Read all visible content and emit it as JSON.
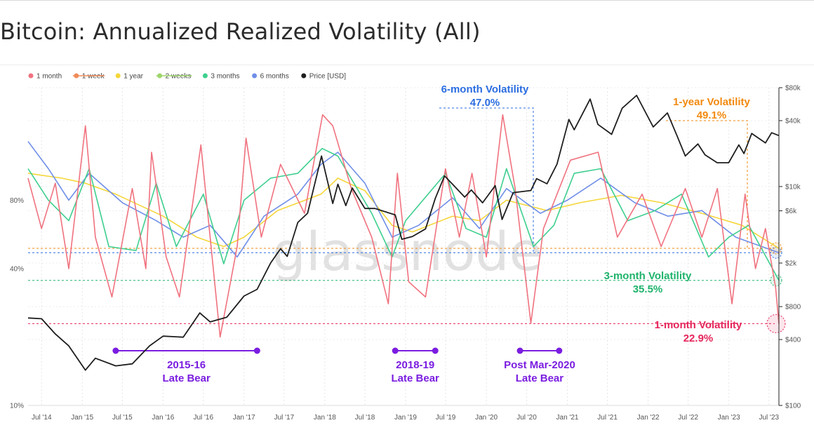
{
  "page": {
    "title": "Bitcoin: Annualized Realized Volatility (All)",
    "watermark": "glassnode"
  },
  "chart_data": {
    "type": "line",
    "x_range": [
      "2014-05-01",
      "2023-08-15"
    ],
    "x_ticks": [
      "Jul '14",
      "Jan '15",
      "Jul '15",
      "Jan '16",
      "Jul '16",
      "Jan '17",
      "Jul '17",
      "Jan '18",
      "Jul '18",
      "Jan '19",
      "Jul '19",
      "Jan '20",
      "Jul '20",
      "Jan '21",
      "Jul '21",
      "Jan '22",
      "Jul '22",
      "Jan '23",
      "Jul '23"
    ],
    "y_left": {
      "scale": "log",
      "unit": "volatility",
      "ticks": [
        "10%",
        "40%",
        "80%"
      ],
      "values": [
        0.1,
        0.4,
        0.8
      ],
      "range": [
        0.1,
        2.5
      ]
    },
    "y_right": {
      "scale": "log",
      "unit": "Price [USD]",
      "ticks": [
        "$100",
        "$400",
        "$800",
        "$2k",
        "$6k",
        "$10k",
        "$40k",
        "$80k"
      ],
      "values": [
        100,
        400,
        800,
        2000,
        6000,
        10000,
        40000,
        80000
      ],
      "range": [
        100,
        80000
      ]
    },
    "legend": [
      {
        "name": "1 month",
        "color": "#f0727f",
        "hidden": false
      },
      {
        "name": "1 week",
        "color": "#f08c5a",
        "hidden": true
      },
      {
        "name": "1 year",
        "color": "#f5d63a",
        "hidden": false
      },
      {
        "name": "2 weeks",
        "color": "#9ed66b",
        "hidden": true
      },
      {
        "name": "3 months",
        "color": "#3ecf8e",
        "hidden": false
      },
      {
        "name": "6 months",
        "color": "#6f8ee8",
        "hidden": false
      },
      {
        "name": "Price [USD]",
        "color": "#1e1e1e",
        "hidden": false
      }
    ],
    "series": [
      {
        "name": "Price [USD]",
        "axis": "right",
        "color": "#1e1e1e",
        "points": [
          [
            "2014-05-01",
            630
          ],
          [
            "2014-07-01",
            620
          ],
          [
            "2014-09-01",
            450
          ],
          [
            "2014-11-01",
            350
          ],
          [
            "2015-01-15",
            210
          ],
          [
            "2015-03-01",
            270
          ],
          [
            "2015-06-01",
            230
          ],
          [
            "2015-08-15",
            240
          ],
          [
            "2015-11-01",
            350
          ],
          [
            "2016-01-01",
            430
          ],
          [
            "2016-04-01",
            420
          ],
          [
            "2016-06-15",
            700
          ],
          [
            "2016-08-01",
            580
          ],
          [
            "2016-10-15",
            640
          ],
          [
            "2017-01-01",
            1000
          ],
          [
            "2017-03-01",
            1150
          ],
          [
            "2017-05-01",
            2000
          ],
          [
            "2017-06-15",
            2700
          ],
          [
            "2017-07-15",
            2300
          ],
          [
            "2017-09-01",
            4700
          ],
          [
            "2017-10-15",
            5700
          ],
          [
            "2017-12-17",
            19000
          ],
          [
            "2018-02-06",
            7000
          ],
          [
            "2018-03-01",
            10500
          ],
          [
            "2018-04-06",
            6700
          ],
          [
            "2018-05-05",
            9700
          ],
          [
            "2018-07-01",
            6300
          ],
          [
            "2018-08-15",
            6300
          ],
          [
            "2018-11-15",
            5500
          ],
          [
            "2018-12-15",
            3300
          ],
          [
            "2019-02-01",
            3500
          ],
          [
            "2019-04-01",
            4100
          ],
          [
            "2019-05-15",
            7800
          ],
          [
            "2019-06-26",
            12500
          ],
          [
            "2019-08-01",
            10500
          ],
          [
            "2019-09-25",
            8000
          ],
          [
            "2019-10-25",
            9300
          ],
          [
            "2019-12-15",
            7100
          ],
          [
            "2020-02-10",
            10200
          ],
          [
            "2020-03-12",
            5000
          ],
          [
            "2020-05-01",
            8800
          ],
          [
            "2020-07-20",
            9200
          ],
          [
            "2020-08-15",
            11800
          ],
          [
            "2020-10-01",
            10600
          ],
          [
            "2020-11-15",
            16000
          ],
          [
            "2021-01-08",
            41000
          ],
          [
            "2021-02-01",
            33000
          ],
          [
            "2021-04-14",
            63000
          ],
          [
            "2021-05-19",
            37000
          ],
          [
            "2021-07-20",
            30000
          ],
          [
            "2021-09-06",
            52000
          ],
          [
            "2021-11-10",
            68000
          ],
          [
            "2022-01-24",
            35000
          ],
          [
            "2022-03-29",
            47000
          ],
          [
            "2022-05-12",
            29000
          ],
          [
            "2022-06-18",
            19000
          ],
          [
            "2022-08-14",
            24500
          ],
          [
            "2022-09-15",
            19500
          ],
          [
            "2022-11-09",
            16500
          ],
          [
            "2022-12-31",
            16500
          ],
          [
            "2023-02-15",
            24000
          ],
          [
            "2023-03-10",
            20000
          ],
          [
            "2023-04-14",
            30500
          ],
          [
            "2023-06-15",
            25000
          ],
          [
            "2023-07-13",
            31000
          ],
          [
            "2023-08-15",
            29200
          ]
        ]
      },
      {
        "name": "1 year",
        "axis": "left",
        "color": "#f5d63a",
        "points": [
          [
            "2014-05-01",
            1.05
          ],
          [
            "2014-10-01",
            1.0
          ],
          [
            "2015-01-15",
            0.95
          ],
          [
            "2015-06-01",
            0.85
          ],
          [
            "2016-01-01",
            0.68
          ],
          [
            "2016-06-01",
            0.55
          ],
          [
            "2016-10-01",
            0.5
          ],
          [
            "2017-01-01",
            0.55
          ],
          [
            "2017-06-01",
            0.72
          ],
          [
            "2017-12-15",
            0.85
          ],
          [
            "2018-03-01",
            1.0
          ],
          [
            "2018-07-01",
            0.88
          ],
          [
            "2018-11-01",
            0.62
          ],
          [
            "2019-02-01",
            0.58
          ],
          [
            "2019-08-01",
            0.68
          ],
          [
            "2019-12-01",
            0.65
          ],
          [
            "2020-04-01",
            0.8
          ],
          [
            "2020-10-01",
            0.72
          ],
          [
            "2021-03-01",
            0.78
          ],
          [
            "2021-09-01",
            0.84
          ],
          [
            "2022-03-01",
            0.78
          ],
          [
            "2022-09-01",
            0.7
          ],
          [
            "2023-03-01",
            0.62
          ],
          [
            "2023-08-15",
            0.491
          ]
        ]
      },
      {
        "name": "6 months",
        "axis": "left",
        "color": "#6f8ee8",
        "points": [
          [
            "2014-05-01",
            1.45
          ],
          [
            "2014-08-01",
            1.1
          ],
          [
            "2014-11-01",
            0.8
          ],
          [
            "2015-02-01",
            1.05
          ],
          [
            "2015-07-01",
            0.78
          ],
          [
            "2015-12-01",
            0.65
          ],
          [
            "2016-04-01",
            0.55
          ],
          [
            "2016-08-01",
            0.62
          ],
          [
            "2016-12-01",
            0.45
          ],
          [
            "2017-04-01",
            0.68
          ],
          [
            "2017-09-01",
            0.85
          ],
          [
            "2017-12-15",
            1.15
          ],
          [
            "2018-03-01",
            1.3
          ],
          [
            "2018-07-01",
            0.95
          ],
          [
            "2018-11-01",
            0.55
          ],
          [
            "2019-03-01",
            0.62
          ],
          [
            "2019-08-01",
            0.82
          ],
          [
            "2019-12-01",
            0.6
          ],
          [
            "2020-04-01",
            0.9
          ],
          [
            "2020-09-01",
            0.7
          ],
          [
            "2021-01-01",
            0.8
          ],
          [
            "2021-06-01",
            1.0
          ],
          [
            "2021-11-01",
            0.78
          ],
          [
            "2022-04-01",
            0.68
          ],
          [
            "2022-09-01",
            0.72
          ],
          [
            "2023-02-01",
            0.55
          ],
          [
            "2023-08-15",
            0.47
          ]
        ]
      },
      {
        "name": "3 months",
        "axis": "left",
        "color": "#3ecf8e",
        "points": [
          [
            "2014-05-01",
            1.1
          ],
          [
            "2014-08-01",
            0.8
          ],
          [
            "2014-11-01",
            0.65
          ],
          [
            "2015-02-01",
            1.1
          ],
          [
            "2015-05-01",
            0.5
          ],
          [
            "2015-09-01",
            0.48
          ],
          [
            "2015-12-01",
            0.95
          ],
          [
            "2016-03-01",
            0.5
          ],
          [
            "2016-07-01",
            0.85
          ],
          [
            "2016-10-01",
            0.42
          ],
          [
            "2017-01-01",
            0.8
          ],
          [
            "2017-05-01",
            1.0
          ],
          [
            "2017-09-01",
            1.05
          ],
          [
            "2017-12-20",
            1.35
          ],
          [
            "2018-03-01",
            1.25
          ],
          [
            "2018-08-01",
            0.7
          ],
          [
            "2018-11-01",
            0.45
          ],
          [
            "2019-01-01",
            0.65
          ],
          [
            "2019-07-01",
            1.05
          ],
          [
            "2019-10-01",
            0.6
          ],
          [
            "2020-01-01",
            0.55
          ],
          [
            "2020-04-01",
            1.1
          ],
          [
            "2020-08-01",
            0.5
          ],
          [
            "2020-11-01",
            0.62
          ],
          [
            "2021-02-01",
            1.05
          ],
          [
            "2021-06-01",
            1.1
          ],
          [
            "2021-10-01",
            0.65
          ],
          [
            "2022-02-01",
            0.72
          ],
          [
            "2022-06-01",
            0.85
          ],
          [
            "2022-10-01",
            0.45
          ],
          [
            "2023-01-01",
            0.55
          ],
          [
            "2023-04-01",
            0.62
          ],
          [
            "2023-08-15",
            0.355
          ]
        ]
      },
      {
        "name": "1 month",
        "axis": "left",
        "color": "#f0727f",
        "points": [
          [
            "2014-05-01",
            1.0
          ],
          [
            "2014-07-01",
            0.6
          ],
          [
            "2014-09-01",
            0.95
          ],
          [
            "2014-11-01",
            0.4
          ],
          [
            "2015-01-15",
            1.7
          ],
          [
            "2015-03-01",
            0.55
          ],
          [
            "2015-05-15",
            0.3
          ],
          [
            "2015-08-15",
            0.9
          ],
          [
            "2015-10-15",
            0.4
          ],
          [
            "2015-11-10",
            1.3
          ],
          [
            "2016-01-15",
            0.45
          ],
          [
            "2016-03-15",
            0.3
          ],
          [
            "2016-06-20",
            1.4
          ],
          [
            "2016-09-15",
            0.2
          ],
          [
            "2016-12-01",
            0.5
          ],
          [
            "2017-01-10",
            1.5
          ],
          [
            "2017-03-20",
            0.55
          ],
          [
            "2017-06-15",
            1.15
          ],
          [
            "2017-10-01",
            0.7
          ],
          [
            "2017-12-22",
            1.9
          ],
          [
            "2018-02-06",
            1.7
          ],
          [
            "2018-05-01",
            0.9
          ],
          [
            "2018-08-01",
            0.55
          ],
          [
            "2018-10-15",
            0.28
          ],
          [
            "2018-11-25",
            1.05
          ],
          [
            "2019-01-15",
            0.35
          ],
          [
            "2019-04-01",
            0.3
          ],
          [
            "2019-06-30",
            1.1
          ],
          [
            "2019-09-01",
            0.55
          ],
          [
            "2019-10-28",
            1.05
          ],
          [
            "2020-01-01",
            0.45
          ],
          [
            "2020-03-15",
            1.9
          ],
          [
            "2020-05-10",
            0.9
          ],
          [
            "2020-07-20",
            0.23
          ],
          [
            "2020-09-15",
            0.6
          ],
          [
            "2021-01-15",
            1.2
          ],
          [
            "2021-05-20",
            1.3
          ],
          [
            "2021-08-15",
            0.55
          ],
          [
            "2021-12-05",
            0.85
          ],
          [
            "2022-03-01",
            0.5
          ],
          [
            "2022-06-18",
            0.9
          ],
          [
            "2022-09-01",
            0.55
          ],
          [
            "2022-11-10",
            0.9
          ],
          [
            "2023-01-15",
            0.28
          ],
          [
            "2023-03-15",
            0.85
          ],
          [
            "2023-05-01",
            0.4
          ],
          [
            "2023-06-15",
            0.6
          ],
          [
            "2023-07-31",
            0.33
          ],
          [
            "2023-08-15",
            0.229
          ]
        ]
      }
    ],
    "reference_lines": [
      {
        "label": "6-month Volatility",
        "value": "47.0%",
        "y": 0.47,
        "color": "#2b6de0"
      },
      {
        "label": "1-year Volatility",
        "value": "49.1%",
        "y": 0.491,
        "color": "#f2890f"
      },
      {
        "label": "3-month Volatility",
        "value": "35.5%",
        "y": 0.355,
        "color": "#1fb36b"
      },
      {
        "label": "1-month Volatility",
        "value": "22.9%",
        "y": 0.229,
        "color": "#e5265b"
      }
    ],
    "periods": [
      {
        "label_line1": "2015-16",
        "label_line2": "Late Bear",
        "start": "2015-06-01",
        "end": "2017-03-01",
        "color": "#7a1de0"
      },
      {
        "label_line1": "2018-19",
        "label_line2": "Late Bear",
        "start": "2018-11-15",
        "end": "2019-05-15",
        "color": "#7a1de0"
      },
      {
        "label_line1": "Post Mar-2020",
        "label_line2": "Late Bear",
        "start": "2020-06-01",
        "end": "2020-11-25",
        "color": "#7a1de0"
      }
    ]
  }
}
